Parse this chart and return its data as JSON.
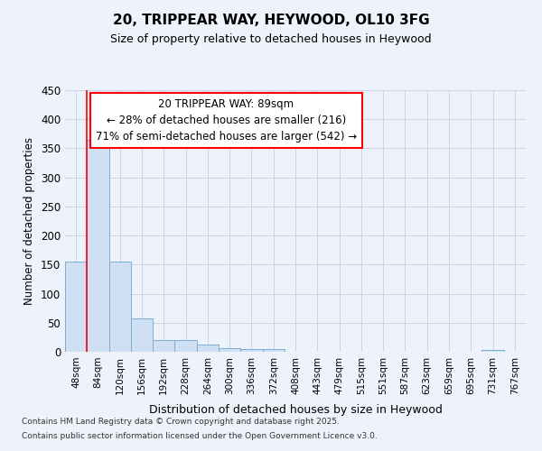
{
  "title": "20, TRIPPEAR WAY, HEYWOOD, OL10 3FG",
  "subtitle": "Size of property relative to detached houses in Heywood",
  "xlabel": "Distribution of detached houses by size in Heywood",
  "ylabel": "Number of detached properties",
  "categories": [
    "48sqm",
    "84sqm",
    "120sqm",
    "156sqm",
    "192sqm",
    "228sqm",
    "264sqm",
    "300sqm",
    "336sqm",
    "372sqm",
    "408sqm",
    "443sqm",
    "479sqm",
    "515sqm",
    "551sqm",
    "587sqm",
    "623sqm",
    "659sqm",
    "695sqm",
    "731sqm",
    "767sqm"
  ],
  "values": [
    155,
    365,
    155,
    57,
    20,
    20,
    13,
    6,
    5,
    5,
    0,
    0,
    0,
    0,
    0,
    0,
    0,
    0,
    0,
    3,
    0
  ],
  "bar_color": "#cfe0f5",
  "bar_edge_color": "#7aadd4",
  "grid_color": "#c8d4e8",
  "red_line_x": 0.5,
  "annotation_line1": "20 TRIPPEAR WAY: 89sqm",
  "annotation_line2": "← 28% of detached houses are smaller (216)",
  "annotation_line3": "71% of semi-detached houses are larger (542) →",
  "footer_line1": "Contains HM Land Registry data © Crown copyright and database right 2025.",
  "footer_line2": "Contains public sector information licensed under the Open Government Licence v3.0.",
  "ylim": [
    0,
    450
  ],
  "yticks": [
    0,
    50,
    100,
    150,
    200,
    250,
    300,
    350,
    400,
    450
  ],
  "background_color": "#eef2fa"
}
